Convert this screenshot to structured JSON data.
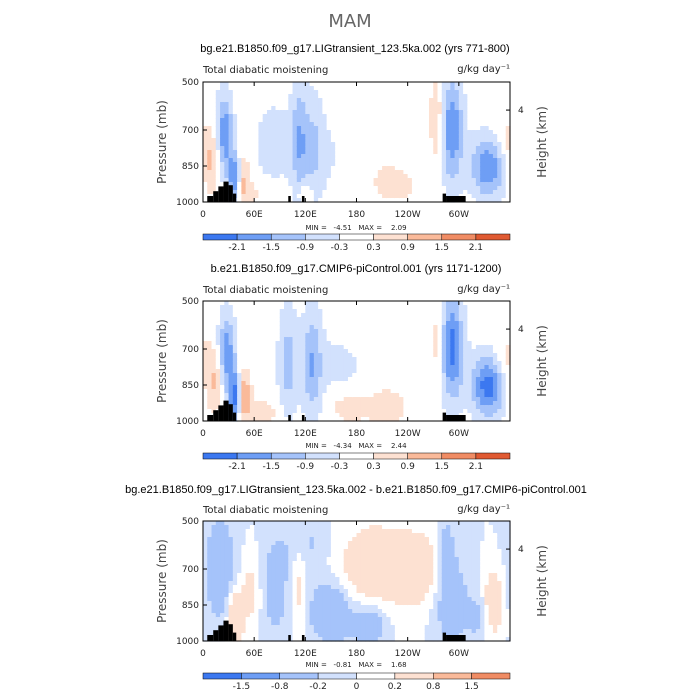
{
  "figure_title": "MAM",
  "chart_data": [
    {
      "type": "heatmap",
      "title": "bg.e21.B1850.f09_g17.LIGtransient_123.5ka.002 (yrs 771-800)",
      "left_label": "Total diabatic moistening",
      "units": "g/kg day⁻¹",
      "ylabel": "Pressure (mb)",
      "right_label": "Height (km)",
      "x_ticks": [
        "0",
        "60E",
        "120E",
        "180",
        "120W",
        "60W"
      ],
      "x_tick_values": [
        0,
        60,
        120,
        180,
        240,
        300
      ],
      "xlim": [
        0,
        360
      ],
      "y_ticks": [
        "500",
        "700",
        "850",
        "1000"
      ],
      "y_tick_values": [
        500,
        700,
        850,
        1000
      ],
      "ylim": [
        1000,
        500
      ],
      "right_ticks": [
        "4"
      ],
      "right_tick_pressure": [
        617
      ],
      "min_max": "MIN =   -4.51   MAX =    2.09",
      "colorbar_labels": [
        "-2.1",
        "-1.5",
        "-0.9",
        "-0.3",
        "0.3",
        "0.9",
        "1.5",
        "2.1"
      ],
      "colorbar_values": [
        -2.1,
        -1.5,
        -0.9,
        -0.3,
        0.3,
        0.9,
        1.5,
        2.1
      ],
      "field_features": [
        {
          "lon": 25,
          "p": 740,
          "amp": -2.3,
          "wlon": 7,
          "wp": 120
        },
        {
          "lon": 38,
          "p": 900,
          "amp": -2.6,
          "wlon": 5,
          "wp": 70
        },
        {
          "lon": 45,
          "p": 900,
          "amp": 1.4,
          "wlon": 6,
          "wp": 70
        },
        {
          "lon": 12,
          "p": 830,
          "amp": 1.2,
          "wlon": 10,
          "wp": 90
        },
        {
          "lon": 82,
          "p": 760,
          "amp": -0.6,
          "wlon": 16,
          "wp": 130
        },
        {
          "lon": 113,
          "p": 740,
          "amp": -1.3,
          "wlon": 7,
          "wp": 170
        },
        {
          "lon": 130,
          "p": 770,
          "amp": -0.9,
          "wlon": 9,
          "wp": 150
        },
        {
          "lon": 160,
          "p": 800,
          "amp": -0.4,
          "wlon": 28,
          "wp": 120
        },
        {
          "lon": 200,
          "p": 780,
          "amp": 0.35,
          "wlon": 30,
          "wp": 150
        },
        {
          "lon": 120,
          "p": 960,
          "amp": 0.8,
          "wlon": 6,
          "wp": 30
        },
        {
          "lon": 292,
          "p": 700,
          "amp": -2.1,
          "wlon": 9,
          "wp": 150
        },
        {
          "lon": 275,
          "p": 650,
          "amp": 0.9,
          "wlon": 6,
          "wp": 130
        },
        {
          "lon": 335,
          "p": 850,
          "amp": -2.2,
          "wlon": 14,
          "wp": 90
        },
        {
          "lon": 350,
          "p": 760,
          "amp": 0.5,
          "wlon": 12,
          "wp": 90
        },
        {
          "lon": 60,
          "p": 960,
          "amp": 0.4,
          "wlon": 20,
          "wp": 40
        },
        {
          "lon": 230,
          "p": 940,
          "amp": 0.3,
          "wlon": 25,
          "wp": 60
        }
      ]
    },
    {
      "type": "heatmap",
      "title": "b.e21.B1850.f09_g17.CMIP6-piControl.001 (yrs 1171-1200)",
      "left_label": "Total diabatic moistening",
      "units": "g/kg day⁻¹",
      "ylabel": "Pressure (mb)",
      "right_label": "Height (km)",
      "x_ticks": [
        "0",
        "60E",
        "120E",
        "180",
        "120W",
        "60W"
      ],
      "x_tick_values": [
        0,
        60,
        120,
        180,
        240,
        300
      ],
      "xlim": [
        0,
        360
      ],
      "y_ticks": [
        "500",
        "700",
        "850",
        "1000"
      ],
      "y_tick_values": [
        500,
        700,
        850,
        1000
      ],
      "ylim": [
        1000,
        500
      ],
      "right_ticks": [
        "4"
      ],
      "right_tick_pressure": [
        617
      ],
      "min_max": "MIN =   -4.34   MAX =    2.44",
      "colorbar_labels": [
        "-2.1",
        "-1.5",
        "-0.9",
        "-0.3",
        "0.3",
        "0.9",
        "1.5",
        "2.1"
      ],
      "colorbar_values": [
        -2.1,
        -1.5,
        -0.9,
        -0.3,
        0.3,
        0.9,
        1.5,
        2.1
      ],
      "field_features": [
        {
          "lon": 28,
          "p": 740,
          "amp": -2.2,
          "wlon": 7,
          "wp": 120
        },
        {
          "lon": 38,
          "p": 900,
          "amp": -2.6,
          "wlon": 5,
          "wp": 70
        },
        {
          "lon": 47,
          "p": 890,
          "amp": 1.6,
          "wlon": 6,
          "wp": 70
        },
        {
          "lon": 15,
          "p": 830,
          "amp": 1.1,
          "wlon": 10,
          "wp": 90
        },
        {
          "lon": 100,
          "p": 760,
          "amp": -1.2,
          "wlon": 8,
          "wp": 160
        },
        {
          "lon": 128,
          "p": 760,
          "amp": -1.4,
          "wlon": 8,
          "wp": 160
        },
        {
          "lon": 160,
          "p": 780,
          "amp": -0.4,
          "wlon": 25,
          "wp": 120
        },
        {
          "lon": 170,
          "p": 940,
          "amp": 0.7,
          "wlon": 16,
          "wp": 50
        },
        {
          "lon": 215,
          "p": 940,
          "amp": 0.8,
          "wlon": 16,
          "wp": 50
        },
        {
          "lon": 255,
          "p": 600,
          "amp": -0.25,
          "wlon": 30,
          "wp": 100
        },
        {
          "lon": 292,
          "p": 700,
          "amp": -2.3,
          "wlon": 9,
          "wp": 150
        },
        {
          "lon": 275,
          "p": 650,
          "amp": 0.8,
          "wlon": 6,
          "wp": 130
        },
        {
          "lon": 335,
          "p": 850,
          "amp": -2.5,
          "wlon": 14,
          "wp": 90
        },
        {
          "lon": 352,
          "p": 760,
          "amp": 0.6,
          "wlon": 12,
          "wp": 90
        },
        {
          "lon": 70,
          "p": 960,
          "amp": 0.5,
          "wlon": 18,
          "wp": 40
        }
      ]
    },
    {
      "type": "heatmap",
      "title": "bg.e21.B1850.f09_g17.LIGtransient_123.5ka.002 - b.e21.B1850.f09_g17.CMIP6-piControl.001",
      "left_label": "Total diabatic moistening",
      "units": "g/kg day⁻¹",
      "ylabel": "Pressure (mb)",
      "right_label": "Height (km)",
      "x_ticks": [
        "0",
        "60E",
        "120E",
        "180",
        "120W",
        "60W"
      ],
      "x_tick_values": [
        0,
        60,
        120,
        180,
        240,
        300
      ],
      "xlim": [
        0,
        360
      ],
      "y_ticks": [
        "500",
        "700",
        "850",
        "1000"
      ],
      "y_tick_values": [
        500,
        700,
        850,
        1000
      ],
      "ylim": [
        1000,
        500
      ],
      "right_ticks": [
        "4"
      ],
      "right_tick_pressure": [
        617
      ],
      "min_max": "MIN =   -0.81   MAX =    1.68",
      "colorbar_labels": [
        "-1.5",
        "-0.8",
        "-0.2",
        "0",
        "0.2",
        "0.8",
        "1.5"
      ],
      "colorbar_values": [
        -1.5,
        -0.8,
        -0.2,
        0,
        0.2,
        0.8,
        1.5
      ],
      "field_features": [
        {
          "lon": 20,
          "p": 700,
          "amp": -0.5,
          "wlon": 12,
          "wp": 150
        },
        {
          "lon": 38,
          "p": 900,
          "amp": 0.8,
          "wlon": 6,
          "wp": 70
        },
        {
          "lon": 55,
          "p": 800,
          "amp": 0.3,
          "wlon": 8,
          "wp": 100
        },
        {
          "lon": 85,
          "p": 780,
          "amp": -0.4,
          "wlon": 10,
          "wp": 140
        },
        {
          "lon": 113,
          "p": 760,
          "amp": 0.3,
          "wlon": 6,
          "wp": 150
        },
        {
          "lon": 150,
          "p": 880,
          "amp": -0.7,
          "wlon": 16,
          "wp": 80
        },
        {
          "lon": 195,
          "p": 930,
          "amp": -0.5,
          "wlon": 14,
          "wp": 60
        },
        {
          "lon": 200,
          "p": 690,
          "amp": 0.45,
          "wlon": 30,
          "wp": 130
        },
        {
          "lon": 255,
          "p": 700,
          "amp": 0.4,
          "wlon": 20,
          "wp": 110
        },
        {
          "lon": 290,
          "p": 820,
          "amp": -0.45,
          "wlon": 14,
          "wp": 130
        },
        {
          "lon": 325,
          "p": 900,
          "amp": -0.3,
          "wlon": 12,
          "wp": 70
        },
        {
          "lon": 340,
          "p": 850,
          "amp": 0.6,
          "wlon": 8,
          "wp": 90
        },
        {
          "lon": 285,
          "p": 600,
          "amp": -0.3,
          "wlon": 8,
          "wp": 90
        },
        {
          "lon": 120,
          "p": 600,
          "amp": -0.25,
          "wlon": 20,
          "wp": 90
        }
      ]
    }
  ],
  "terrain": [
    {
      "lon0": 5,
      "lon1": 12,
      "p": 975
    },
    {
      "lon0": 12,
      "lon1": 18,
      "p": 955
    },
    {
      "lon0": 18,
      "lon1": 24,
      "p": 935
    },
    {
      "lon0": 24,
      "lon1": 30,
      "p": 915
    },
    {
      "lon0": 30,
      "lon1": 35,
      "p": 930
    },
    {
      "lon0": 35,
      "lon1": 39,
      "p": 965
    },
    {
      "lon0": 100,
      "lon1": 103,
      "p": 975
    },
    {
      "lon0": 116,
      "lon1": 119,
      "p": 975
    },
    {
      "lon0": 281,
      "lon1": 285,
      "p": 965
    },
    {
      "lon0": 285,
      "lon1": 308,
      "p": 975
    }
  ],
  "colors": {
    "bg": "#ffffff",
    "frame": "#000000",
    "terrain": "#000000",
    "palette": [
      "#000a6e",
      "#0a28b4",
      "#1e50dc",
      "#3c78f0",
      "#6e9ef5",
      "#a5c3fa",
      "#d2e1fd",
      "#ffffff",
      "#fde1d2",
      "#faba9a",
      "#f08c64",
      "#e05a32",
      "#c0280a",
      "#8c0a00",
      "#5a0000"
    ]
  }
}
